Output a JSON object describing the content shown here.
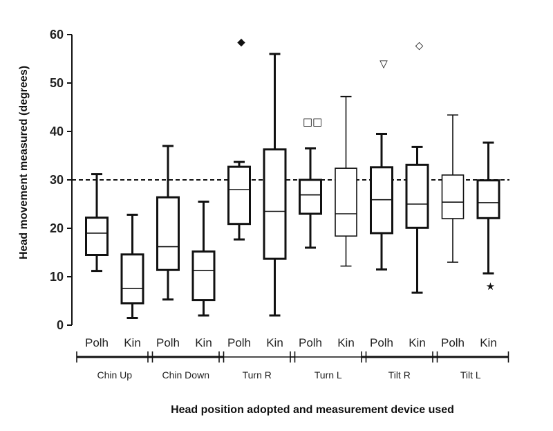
{
  "chart_data": {
    "type": "boxplot",
    "xlabel": "Head position adopted and measurement device used",
    "ylabel": "Head movement measured (degrees)",
    "ylim": [
      0,
      60
    ],
    "yticks": [
      "0",
      "10",
      "20",
      "30",
      "40",
      "50",
      "60"
    ],
    "reference_line": 30,
    "reference_line_style": "dashed",
    "grid": false,
    "groups": [
      "Chin Up",
      "Chin Down",
      "Turn R",
      "Turn L",
      "Tilt R",
      "Tilt L"
    ],
    "boxes": [
      {
        "group": "Chin Up",
        "device": "Polh",
        "min": 11.2,
        "q1": 14.5,
        "median": 19.0,
        "q3": 22.2,
        "max": 31.2,
        "thick": true,
        "outliers": []
      },
      {
        "group": "Chin Up",
        "device": "Kin",
        "min": 1.5,
        "q1": 4.5,
        "median": 7.6,
        "q3": 14.6,
        "max": 22.8,
        "thick": true,
        "outliers": []
      },
      {
        "group": "Chin Down",
        "device": "Polh",
        "min": 5.3,
        "q1": 11.4,
        "median": 16.2,
        "q3": 26.4,
        "max": 37.0,
        "thick": true,
        "outliers": []
      },
      {
        "group": "Chin Down",
        "device": "Kin",
        "min": 2.0,
        "q1": 5.2,
        "median": 11.3,
        "q3": 15.2,
        "max": 25.5,
        "thick": true,
        "outliers": []
      },
      {
        "group": "Turn R",
        "device": "Polh",
        "min": 17.7,
        "q1": 20.9,
        "median": 28.0,
        "q3": 32.7,
        "max": 33.7,
        "thick": true,
        "outliers": [
          {
            "value": 58.5,
            "marker": "◆"
          }
        ]
      },
      {
        "group": "Turn R",
        "device": "Kin",
        "min": 2.0,
        "q1": 13.7,
        "median": 23.5,
        "q3": 36.3,
        "max": 56.0,
        "thick": true,
        "outliers": []
      },
      {
        "group": "Turn L",
        "device": "Polh",
        "min": 16.0,
        "q1": 23.0,
        "median": 26.9,
        "q3": 30.0,
        "max": 36.5,
        "thick": true,
        "outliers": [
          {
            "value": 42.0,
            "marker": "□□"
          }
        ]
      },
      {
        "group": "Turn L",
        "device": "Kin",
        "min": 12.2,
        "q1": 18.4,
        "median": 23.0,
        "q3": 32.4,
        "max": 47.2,
        "thick": false,
        "outliers": []
      },
      {
        "group": "Tilt R",
        "device": "Polh",
        "min": 11.5,
        "q1": 19.0,
        "median": 25.9,
        "q3": 32.6,
        "max": 39.5,
        "thick": true,
        "outliers": [
          {
            "value": 54.0,
            "marker": "▽"
          }
        ]
      },
      {
        "group": "Tilt R",
        "device": "Kin",
        "min": 6.7,
        "q1": 20.1,
        "median": 25.0,
        "q3": 33.1,
        "max": 36.8,
        "thick": true,
        "outliers": [
          {
            "value": 57.8,
            "marker": "◇"
          }
        ]
      },
      {
        "group": "Tilt L",
        "device": "Polh",
        "min": 13.0,
        "q1": 22.0,
        "median": 25.4,
        "q3": 31.0,
        "max": 43.4,
        "thick": false,
        "outliers": []
      },
      {
        "group": "Tilt L",
        "device": "Kin",
        "min": 10.7,
        "q1": 22.1,
        "median": 25.3,
        "q3": 29.9,
        "max": 37.7,
        "thick": true,
        "outliers": [
          {
            "value": 8.0,
            "marker": "★"
          }
        ]
      }
    ]
  }
}
